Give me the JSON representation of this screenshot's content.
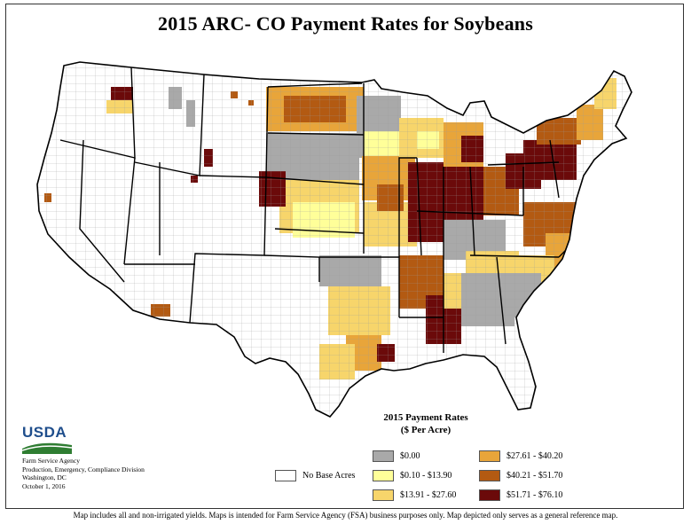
{
  "title": "2015 ARC- CO Payment Rates for Soybeans",
  "legend": {
    "title_line1": "2015 Payment Rates",
    "title_line2": "($ Per Acre)",
    "no_base": {
      "label": "No Base Acres",
      "color": "#ffffff"
    },
    "classes": [
      {
        "label": "$0.00",
        "color": "#a9a9a9"
      },
      {
        "label": "$0.10 - $13.90",
        "color": "#ffff99"
      },
      {
        "label": "$13.91 - $27.60",
        "color": "#f7d56b"
      },
      {
        "label": "$27.61 - $40.20",
        "color": "#e8a53a"
      },
      {
        "label": "$40.21 - $51.70",
        "color": "#b35a12"
      },
      {
        "label": "$51.71 - $76.10",
        "color": "#6b0a0a"
      }
    ]
  },
  "logo": {
    "text": "USDA"
  },
  "agency": {
    "line1": "Farm Service Agency",
    "line2": "Production, Emergency, Compliance Division",
    "line3": "Washington, DC",
    "line4": "October 1, 2016"
  },
  "footnote": "Map includes all and non-irrigated yields. Maps is intended for Farm Service Agency (FSA) business purposes only. Map depicted only serves as a general reference map.",
  "map_colors": {
    "land": "#ffffff",
    "water": "#ffffff",
    "border": "#000000",
    "county_line": "#8a8a8a"
  }
}
